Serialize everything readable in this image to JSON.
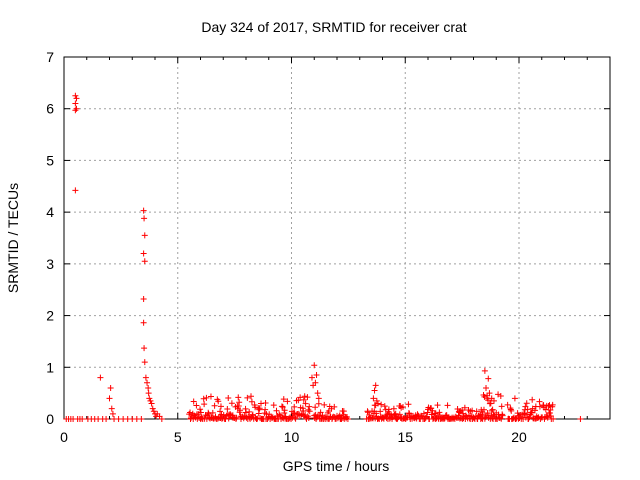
{
  "chart_data": {
    "type": "scatter",
    "title": "Day 324 of 2017, SRMTID for receiver crat",
    "xlabel": "GPS time / hours",
    "ylabel": "SRMTID / TECUs",
    "xlim": [
      0,
      24
    ],
    "ylim": [
      0,
      7
    ],
    "xticks": [
      0,
      5,
      10,
      15,
      20
    ],
    "xtick_labels": [
      "0",
      "5",
      "10",
      "15",
      "20"
    ],
    "yticks": [
      0,
      1,
      2,
      3,
      4,
      5,
      6,
      7
    ],
    "ytick_labels": [
      "0",
      "1",
      "2",
      "3",
      "4",
      "5",
      "6",
      "7"
    ],
    "grid": true,
    "marker": "+",
    "color": "#ff0000",
    "series": [
      {
        "name": "SRMTID",
        "points": [
          [
            0.5,
            6.25
          ],
          [
            0.55,
            6.2
          ],
          [
            0.5,
            6.1
          ],
          [
            0.55,
            6.0
          ],
          [
            0.5,
            5.97
          ],
          [
            0.5,
            4.42
          ],
          [
            0.1,
            0.0
          ],
          [
            0.2,
            0.0
          ],
          [
            0.3,
            0.0
          ],
          [
            0.4,
            0.0
          ],
          [
            0.6,
            0.0
          ],
          [
            0.7,
            0.0
          ],
          [
            0.8,
            0.0
          ],
          [
            1.05,
            0.0
          ],
          [
            1.2,
            0.0
          ],
          [
            1.35,
            0.0
          ],
          [
            1.5,
            0.0
          ],
          [
            1.6,
            0.8
          ],
          [
            1.7,
            0.0
          ],
          [
            1.85,
            0.0
          ],
          [
            2.0,
            0.4
          ],
          [
            2.05,
            0.6
          ],
          [
            2.1,
            0.2
          ],
          [
            2.15,
            0.1
          ],
          [
            2.2,
            0.0
          ],
          [
            2.4,
            0.0
          ],
          [
            2.6,
            0.0
          ],
          [
            2.8,
            0.0
          ],
          [
            3.0,
            0.0
          ],
          [
            3.2,
            0.0
          ],
          [
            3.4,
            0.0
          ],
          [
            3.5,
            4.03
          ],
          [
            3.52,
            3.88
          ],
          [
            3.55,
            3.55
          ],
          [
            3.5,
            3.2
          ],
          [
            3.55,
            3.05
          ],
          [
            3.5,
            2.32
          ],
          [
            3.5,
            1.86
          ],
          [
            3.52,
            1.37
          ],
          [
            3.55,
            1.1
          ],
          [
            3.6,
            0.8
          ],
          [
            3.65,
            0.7
          ],
          [
            3.7,
            0.6
          ],
          [
            3.72,
            0.5
          ],
          [
            3.75,
            0.4
          ],
          [
            3.8,
            0.35
          ],
          [
            3.85,
            0.3
          ],
          [
            3.9,
            0.2
          ],
          [
            3.95,
            0.15
          ],
          [
            4.0,
            0.1
          ],
          [
            4.05,
            0.05
          ],
          [
            4.1,
            0.1
          ],
          [
            4.2,
            0.05
          ],
          [
            4.3,
            0.0
          ],
          [
            10.9,
            0.8
          ],
          [
            10.95,
            0.65
          ],
          [
            11.0,
            1.04
          ],
          [
            11.05,
            0.7
          ],
          [
            11.1,
            0.85
          ],
          [
            11.15,
            0.5
          ],
          [
            11.2,
            0.4
          ],
          [
            13.6,
            0.4
          ],
          [
            13.65,
            0.55
          ],
          [
            13.7,
            0.65
          ],
          [
            13.75,
            0.35
          ],
          [
            13.8,
            0.3
          ],
          [
            18.5,
            0.93
          ],
          [
            18.55,
            0.6
          ],
          [
            18.6,
            0.45
          ],
          [
            18.65,
            0.78
          ],
          [
            18.7,
            0.5
          ],
          [
            18.8,
            0.4
          ],
          [
            18.9,
            0.35
          ],
          [
            22.7,
            0.0
          ]
        ],
        "dense_segments": [
          {
            "x_start": 5.5,
            "x_end": 10.8,
            "y_max": 0.45
          },
          {
            "x_start": 11.0,
            "x_end": 12.5,
            "y_max": 0.3
          },
          {
            "x_start": 13.3,
            "x_end": 18.4,
            "y_max": 0.3
          },
          {
            "x_start": 18.4,
            "x_end": 19.3,
            "y_max": 0.5
          },
          {
            "x_start": 19.5,
            "x_end": 21.5,
            "y_max": 0.4
          }
        ]
      }
    ]
  }
}
